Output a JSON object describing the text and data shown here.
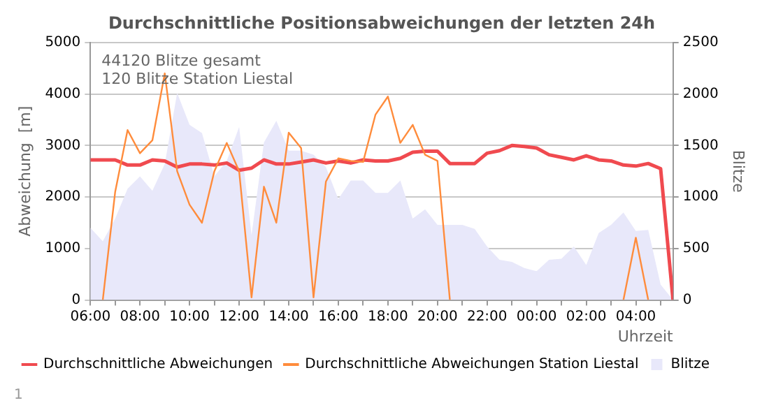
{
  "chart_data": {
    "type": "line",
    "title": "Durchschnittliche Positionsabweichungen der letzten 24h",
    "xlabel": "Uhrzeit",
    "ylabel": "Abweichung  [m]",
    "y2label": "Blitze",
    "annotations": [
      "44120 Blitze gesamt",
      "120 Blitze Station Liestal",
      "1"
    ],
    "x": [
      "--01-01T06:00",
      "--01-01T06:30",
      "--01-01T07:00",
      "--01-01T07:30",
      "--01-01T08:00",
      "--01-01T08:30",
      "--01-01T09:00",
      "--01-01T09:30",
      "--01-01T10:00",
      "--01-01T10:30",
      "--01-01T11:00",
      "--01-01T11:30",
      "--01-01T12:00",
      "--01-01T12:30",
      "--01-01T13:00",
      "--01-01T13:30",
      "--01-01T14:00",
      "--01-01T14:30",
      "--01-01T15:00",
      "--01-01T15:30",
      "--01-01T16:00",
      "--01-01T16:30",
      "--01-01T17:00",
      "--01-01T17:30",
      "--01-01T18:00",
      "--01-01T18:30",
      "--01-01T19:00",
      "--01-01T19:30",
      "--01-01T20:00",
      "--01-01T20:30",
      "--01-01T21:00",
      "--01-01T21:30",
      "--01-01T22:00",
      "--01-01T22:30",
      "--01-01T23:00",
      "--01-01T23:30",
      "--01-02T00:00",
      "--01-02T00:30",
      "--01-02T01:00",
      "--01-02T01:30",
      "--01-02T02:00",
      "--01-02T02:30",
      "--01-02T03:00",
      "--01-02T03:30",
      "--01-02T04:00",
      "--01-02T04:30",
      "--01-02T05:00",
      "--01-02T05:30"
    ],
    "series": [
      {
        "name": "Durchschnittliche Abweichungen",
        "color": "#f04a4f",
        "values": [
          2720,
          2720,
          2720,
          2620,
          2620,
          2720,
          2700,
          2580,
          2640,
          2640,
          2620,
          2660,
          2520,
          2560,
          2720,
          2640,
          2640,
          2680,
          2720,
          2660,
          2700,
          2660,
          2720,
          2700,
          2700,
          2750,
          2870,
          2890,
          2890,
          2650,
          2650,
          2650,
          2850,
          2900,
          3000,
          2980,
          2950,
          2820,
          2770,
          2720,
          2800,
          2720,
          2700,
          2620,
          2600,
          2650,
          2550,
          0
        ]
      },
      {
        "name": "Durchschnittliche Abweichungen Station Liestal",
        "color": "#ff8c3c",
        "values": [
          null,
          0,
          2100,
          3300,
          2850,
          3100,
          4400,
          2500,
          1850,
          1500,
          2500,
          3050,
          2500,
          50,
          2200,
          1500,
          3250,
          2950,
          50,
          2300,
          2750,
          2700,
          2680,
          3600,
          3950,
          3050,
          3400,
          2820,
          2700,
          0,
          null,
          null,
          null,
          null,
          null,
          null,
          null,
          null,
          null,
          null,
          null,
          null,
          null,
          0,
          1210,
          0,
          null,
          null
        ]
      },
      {
        "name": "Blitze",
        "type": "area",
        "axis": "y2",
        "color": "#e8e8fa",
        "values": [
          700,
          570,
          790,
          1080,
          1200,
          1060,
          1320,
          2010,
          1700,
          1620,
          1200,
          1350,
          1680,
          630,
          1530,
          1740,
          1450,
          1450,
          1410,
          1290,
          980,
          1160,
          1160,
          1040,
          1040,
          1160,
          790,
          880,
          730,
          730,
          730,
          690,
          520,
          390,
          370,
          310,
          280,
          390,
          400,
          520,
          340,
          650,
          730,
          850,
          670,
          680,
          150,
          0
        ]
      }
    ],
    "xlim": [
      "--01-01T06:00",
      "--01-02T05:30"
    ],
    "xticks": [
      {
        "value": "--01-01T06:00",
        "label": "06:00"
      },
      {
        "value": "--01-01T07:00",
        "label": null
      },
      {
        "value": "--01-01T08:00",
        "label": "08:00"
      },
      {
        "value": "--01-01T09:00",
        "label": null
      },
      {
        "value": "--01-01T10:00",
        "label": "10:00"
      },
      {
        "value": "--01-01T11:00",
        "label": null
      },
      {
        "value": "--01-01T12:00",
        "label": "12:00"
      },
      {
        "value": "--01-01T13:00",
        "label": null
      },
      {
        "value": "--01-01T14:00",
        "label": "14:00"
      },
      {
        "value": "--01-01T15:00",
        "label": null
      },
      {
        "value": "--01-01T16:00",
        "label": "16:00"
      },
      {
        "value": "--01-01T17:00",
        "label": null
      },
      {
        "value": "--01-01T18:00",
        "label": "18:00"
      },
      {
        "value": "--01-01T19:00",
        "label": null
      },
      {
        "value": "--01-01T20:00",
        "label": "20:00"
      },
      {
        "value": "--01-01T21:00",
        "label": null
      },
      {
        "value": "--01-01T22:00",
        "label": "22:00"
      },
      {
        "value": "--01-01T23:00",
        "label": null
      },
      {
        "value": "--01-02T00:00",
        "label": "00:00"
      },
      {
        "value": "--01-02T01:00",
        "label": null
      },
      {
        "value": "--01-02T02:00",
        "label": "02:00"
      },
      {
        "value": "--01-02T03:00",
        "label": null
      },
      {
        "value": "--01-02T04:00",
        "label": "04:00"
      },
      {
        "value": "--01-02T05:00",
        "label": null
      }
    ],
    "ylim": [
      0,
      5000
    ],
    "yticks": [
      0,
      1000,
      2000,
      3000,
      4000,
      5000
    ],
    "y2lim": [
      0,
      2500
    ],
    "y2ticks": [
      0,
      500,
      1000,
      1500,
      2000,
      2500
    ],
    "grid": "y",
    "legend": "bottom",
    "marker": "none",
    "line_style": "solid"
  }
}
